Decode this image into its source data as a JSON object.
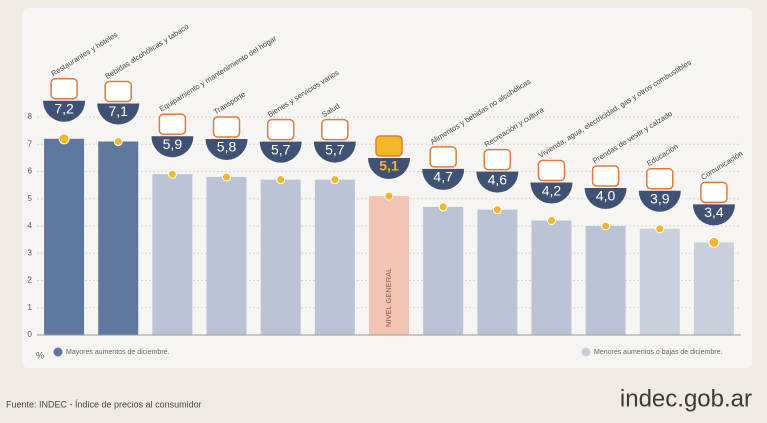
{
  "chart_data": {
    "type": "bar",
    "categories": [
      "Restaurantes y hoteles",
      "Bebidas alcohólicas y tabaco",
      "Equipamiento y mantenimiento del hogar",
      "Transporte",
      "Bienes y servicios varios",
      "Salud",
      "NIVEL GENERAL",
      "Alimentos y bebidas no alcohólicas",
      "Recreación y cultura",
      "Vivienda, agua, electricidad, gas y otros combustibles",
      "Prendas de vestir y calzado",
      "Educación",
      "Comunicación"
    ],
    "values": [
      7.2,
      7.1,
      5.9,
      5.8,
      5.7,
      5.7,
      5.1,
      4.7,
      4.6,
      4.2,
      4.0,
      3.9,
      3.4
    ],
    "value_labels": [
      "7,2",
      "7,1",
      "5,9",
      "5,8",
      "5,7",
      "5,7",
      "5,1",
      "4,7",
      "4,6",
      "4,2",
      "4,0",
      "3,9",
      "3,4"
    ],
    "colors": [
      "#5d779f",
      "#5d779f",
      "#b9c3d5",
      "#b9c3d5",
      "#b9c3d5",
      "#b9c3d5",
      "#f3c4b3",
      "#b9c3d5",
      "#b9c3d5",
      "#b9c3d5",
      "#b9c3d5",
      "#c9d0dc",
      "#c9d0dc"
    ],
    "label_position": [
      "above",
      "above",
      "above",
      "above",
      "above",
      "above",
      "inside",
      "above",
      "above",
      "above",
      "above",
      "above",
      "above"
    ],
    "ylabel": "%",
    "ylim": [
      0,
      8
    ],
    "yticks": [
      0,
      1,
      2,
      3,
      4,
      5,
      6,
      7,
      8
    ],
    "grid": true,
    "legend": [
      {
        "label": "Mayores aumentos de diciembre.",
        "color": "#5d779f"
      },
      {
        "label": "Menores aumentos o bajas de diciembre.",
        "color": "#c9d0dc"
      }
    ],
    "source": "Fuente: INDEC - Índice de precios al consumidor",
    "brand": "indec.gob.ar"
  }
}
